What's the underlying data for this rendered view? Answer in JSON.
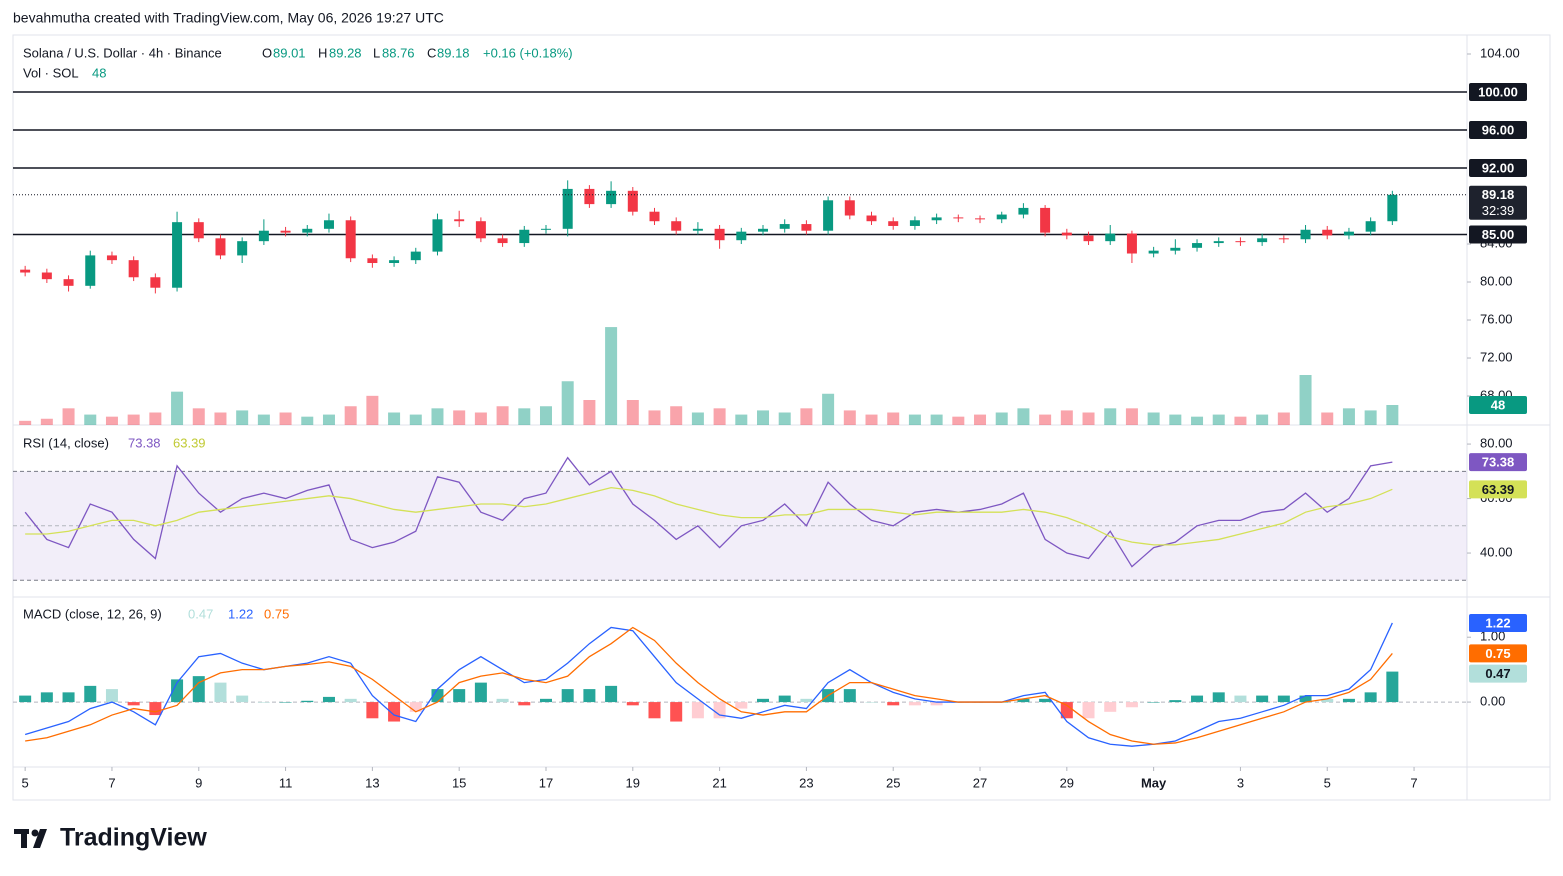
{
  "header": {
    "credit": "bevahmutha created with TradingView.com, May 06, 2026 19:27 UTC",
    "logo": "TradingView"
  },
  "chart_data": [
    {
      "type": "candlestick",
      "title": "Solana / U.S. Dollar · 4h · Binance",
      "legend": {
        "open_label": "O",
        "open": 89.01,
        "high_label": "H",
        "high": 89.28,
        "low_label": "L",
        "low": 88.76,
        "close_label": "C",
        "change": "+0.16 (+0.18%)"
      },
      "x": [
        0,
        0.5,
        1,
        1.5,
        2,
        2.5,
        3,
        3.5,
        4,
        4.5,
        5,
        5.5,
        6,
        6.5,
        7,
        7.5,
        8,
        8.5,
        9,
        9.5,
        10,
        10.5,
        11,
        11.5,
        12,
        12.5,
        13,
        13.5,
        14,
        14.5,
        15,
        15.5,
        16,
        16.5,
        17,
        17.5,
        18,
        18.5,
        19,
        19.5,
        20,
        20.5,
        21,
        21.5,
        22,
        22.5,
        23,
        23.5,
        24,
        24.5,
        25,
        25.5,
        26,
        26.5,
        27,
        27.5,
        28,
        28.5,
        29,
        29.5,
        30,
        30.5,
        31,
        31.5
      ],
      "open": [
        81.3,
        81.0,
        80.3,
        79.6,
        82.8,
        82.3,
        80.5,
        79.4,
        86.3,
        84.6,
        82.8,
        84.3,
        85.4,
        85.2,
        85.6,
        86.5,
        82.5,
        82.0,
        82.3,
        83.2,
        86.6,
        86.4,
        84.6,
        84.1,
        85.5,
        85.6,
        89.8,
        88.2,
        89.6,
        87.4,
        86.4,
        85.4,
        85.6,
        84.4,
        85.3,
        85.6,
        86.1,
        85.4,
        88.6,
        87.0,
        86.4,
        85.9,
        86.5,
        86.8,
        86.7,
        86.6,
        87.1,
        87.8,
        85.2,
        84.9,
        84.3,
        85.1,
        83.0,
        83.3,
        83.6,
        84.1,
        84.3,
        84.2,
        84.6,
        84.5,
        85.5,
        84.9,
        85.3,
        86.4
      ],
      "high": [
        81.7,
        81.4,
        80.7,
        83.3,
        83.2,
        82.7,
        80.9,
        87.4,
        86.7,
        85.0,
        84.7,
        86.6,
        85.8,
        86.0,
        87.2,
        86.9,
        82.9,
        82.7,
        83.6,
        87.2,
        87.5,
        86.8,
        85.0,
        85.9,
        86.0,
        90.7,
        90.2,
        90.6,
        90.0,
        87.8,
        86.8,
        86.3,
        86.0,
        85.7,
        86.0,
        86.6,
        86.5,
        89.0,
        89.0,
        87.4,
        86.8,
        86.9,
        87.2,
        87.1,
        87.0,
        87.4,
        88.3,
        88.1,
        85.6,
        85.3,
        86.0,
        85.4,
        83.7,
        84.5,
        84.5,
        84.7,
        84.7,
        85.1,
        84.9,
        86.0,
        85.9,
        85.7,
        86.8,
        89.6
      ],
      "low": [
        80.6,
        79.9,
        79.0,
        79.3,
        81.9,
        80.1,
        78.8,
        79.0,
        84.2,
        82.4,
        82.0,
        83.9,
        84.8,
        84.8,
        85.2,
        82.1,
        81.5,
        81.6,
        81.9,
        82.8,
        85.8,
        84.2,
        83.7,
        83.7,
        85.1,
        84.8,
        87.8,
        87.8,
        87.0,
        86.0,
        85.0,
        85.0,
        83.5,
        84.0,
        84.9,
        85.2,
        85.0,
        85.0,
        86.6,
        86.0,
        85.5,
        85.5,
        86.1,
        86.3,
        86.2,
        86.2,
        86.7,
        84.8,
        84.5,
        83.9,
        83.9,
        82.0,
        82.6,
        82.9,
        83.2,
        83.7,
        83.8,
        83.8,
        84.1,
        84.1,
        84.5,
        84.5,
        84.9,
        86.0
      ],
      "close": [
        81.0,
        80.3,
        79.6,
        82.8,
        82.3,
        80.5,
        79.4,
        86.3,
        84.6,
        82.8,
        84.3,
        85.4,
        85.2,
        85.6,
        86.5,
        82.5,
        82.0,
        82.3,
        83.2,
        86.6,
        86.4,
        84.6,
        84.1,
        85.5,
        85.6,
        89.8,
        88.2,
        89.6,
        87.4,
        86.4,
        85.4,
        85.6,
        84.4,
        85.3,
        85.6,
        86.1,
        85.4,
        88.6,
        87.0,
        86.4,
        85.9,
        86.5,
        86.8,
        86.7,
        86.6,
        87.1,
        87.8,
        85.2,
        84.9,
        84.3,
        85.1,
        83.0,
        83.3,
        83.6,
        84.1,
        84.3,
        84.2,
        84.6,
        84.5,
        85.5,
        84.9,
        85.3,
        86.4,
        89.18
      ],
      "up_color": "#089981",
      "down_color": "#f23645",
      "ylim": [
        64.95,
        106
      ],
      "yticks": [
        {
          "value": 68,
          "label": "68.00"
        },
        {
          "value": 72,
          "label": "72.00"
        },
        {
          "value": 76,
          "label": "76.00"
        },
        {
          "value": 80,
          "label": "80.00"
        },
        {
          "value": 84,
          "label": "84.00"
        },
        {
          "value": 104,
          "label": "104.00"
        }
      ],
      "hlines": [
        {
          "value": 100,
          "label": "100.00"
        },
        {
          "value": 96,
          "label": "96.00"
        },
        {
          "value": 92,
          "label": "92.00"
        },
        {
          "value": 85,
          "label": "85.00"
        }
      ],
      "countdown": "32:39",
      "xlim": [
        -0.28,
        33.22
      ],
      "xticks": [
        {
          "value": 0,
          "label": "5"
        },
        {
          "value": 2,
          "label": "7"
        },
        {
          "value": 4,
          "label": "9"
        },
        {
          "value": 6,
          "label": "11"
        },
        {
          "value": 8,
          "label": "13"
        },
        {
          "value": 10,
          "label": "15"
        },
        {
          "value": 12,
          "label": "17"
        },
        {
          "value": 14,
          "label": "19"
        },
        {
          "value": 16,
          "label": "21"
        },
        {
          "value": 18,
          "label": "23"
        },
        {
          "value": 20,
          "label": "25"
        },
        {
          "value": 22,
          "label": "27"
        },
        {
          "value": 24,
          "label": "29"
        },
        {
          "value": 26,
          "label": "May"
        },
        {
          "value": 28,
          "label": "3"
        },
        {
          "value": 30,
          "label": "5"
        },
        {
          "value": 32,
          "label": "7"
        }
      ],
      "volume": {
        "title": "Vol · SOL",
        "ylim": [
          0,
          240
        ],
        "values": [
          10,
          15,
          40,
          25,
          20,
          25,
          30,
          80,
          40,
          30,
          35,
          25,
          30,
          20,
          25,
          45,
          70,
          30,
          25,
          40,
          35,
          30,
          45,
          40,
          45,
          105,
          60,
          235,
          60,
          35,
          45,
          30,
          40,
          25,
          35,
          30,
          40,
          75,
          35,
          25,
          30,
          25,
          25,
          20,
          25,
          30,
          40,
          25,
          35,
          30,
          40,
          40,
          30,
          25,
          20,
          25,
          20,
          25,
          30,
          120,
          30,
          40,
          35,
          48
        ]
      }
    },
    {
      "type": "rsi",
      "title": "RSI (14, close)",
      "ylim": [
        24.6,
        87
      ],
      "band": [
        30,
        70
      ],
      "midline": 50,
      "yticks": [
        {
          "value": 40,
          "label": "40.00"
        },
        {
          "value": 60,
          "label": "60.00"
        },
        {
          "value": 80,
          "label": "80.00"
        }
      ],
      "series": [
        {
          "color": "#7e57c2",
          "values": [
            55,
            45,
            42,
            58,
            55,
            45,
            38,
            72,
            62,
            55,
            60,
            62,
            60,
            63,
            65,
            45,
            42,
            44,
            48,
            68,
            66,
            55,
            52,
            60,
            62,
            75,
            65,
            70,
            58,
            52,
            45,
            50,
            42,
            50,
            52,
            58,
            50,
            66,
            58,
            52,
            50,
            55,
            56,
            55,
            56,
            58,
            62,
            45,
            40,
            38,
            48,
            35,
            42,
            44,
            50,
            52,
            52,
            55,
            56,
            62,
            55,
            60,
            72,
            73.38
          ]
        },
        {
          "color": "#d4e157",
          "values": [
            47,
            47,
            48,
            50,
            52,
            52,
            50,
            52,
            55,
            56,
            57,
            58,
            59,
            60,
            61,
            60,
            58,
            56,
            55,
            56,
            57,
            58,
            58,
            57,
            58,
            60,
            62,
            64,
            63,
            61,
            58,
            56,
            54,
            53,
            53,
            54,
            54,
            56,
            56,
            56,
            55,
            54,
            55,
            55,
            55,
            55,
            56,
            55,
            53,
            50,
            46,
            44,
            43,
            43,
            44,
            45,
            47,
            49,
            51,
            55,
            57,
            58,
            60,
            63.39
          ]
        }
      ]
    },
    {
      "type": "macd",
      "title": "MACD (close, 12, 26, 9)",
      "ylim": [
        -0.97,
        1.62
      ],
      "yticks": [
        {
          "value": 0,
          "label": "0.00"
        },
        {
          "value": 1,
          "label": "1.00"
        }
      ],
      "histogram": {
        "color": "#b2dfdb",
        "colors": {
          "pos_rising": "#26a69a",
          "pos_falling": "#b2dfdb",
          "neg_falling": "#ff5252",
          "neg_rising": "#ffcdd2"
        },
        "values": [
          0.1,
          0.15,
          0.15,
          0.25,
          0.2,
          -0.05,
          -0.2,
          0.35,
          0.4,
          0.3,
          0.1,
          0,
          0,
          0.02,
          0.08,
          0.05,
          -0.25,
          -0.3,
          -0.15,
          0.2,
          0.2,
          0.3,
          0.05,
          -0.05,
          0.05,
          0.2,
          0.2,
          0.25,
          -0.05,
          -0.25,
          -0.3,
          -0.25,
          -0.25,
          -0.1,
          0.05,
          0.1,
          0.05,
          0.2,
          0.2,
          0,
          -0.05,
          -0.05,
          -0.05,
          0,
          0,
          0,
          0.05,
          0.05,
          -0.25,
          -0.25,
          -0.15,
          -0.08,
          0,
          0.03,
          0.1,
          0.15,
          0.1,
          0.1,
          0.1,
          0.1,
          0.05,
          0.05,
          0.15,
          0.47
        ]
      },
      "series": [
        {
          "color": "#2962ff",
          "values": [
            -0.5,
            -0.4,
            -0.3,
            -0.1,
            0.0,
            -0.15,
            -0.35,
            0.3,
            0.7,
            0.75,
            0.6,
            0.5,
            0.55,
            0.6,
            0.7,
            0.6,
            0.1,
            -0.2,
            -0.3,
            0.2,
            0.5,
            0.7,
            0.5,
            0.3,
            0.35,
            0.6,
            0.9,
            1.15,
            1.1,
            0.7,
            0.3,
            0.05,
            -0.2,
            -0.25,
            -0.15,
            -0.05,
            -0.1,
            0.3,
            0.5,
            0.3,
            0.15,
            0.05,
            0.0,
            0.0,
            0.0,
            0.0,
            0.1,
            0.15,
            -0.3,
            -0.55,
            -0.65,
            -0.68,
            -0.65,
            -0.6,
            -0.45,
            -0.3,
            -0.25,
            -0.15,
            -0.05,
            0.1,
            0.1,
            0.2,
            0.5,
            1.22
          ]
        },
        {
          "color": "#ff6d00",
          "values": [
            -0.6,
            -0.55,
            -0.45,
            -0.35,
            -0.2,
            -0.1,
            -0.15,
            -0.05,
            0.3,
            0.45,
            0.5,
            0.5,
            0.55,
            0.58,
            0.62,
            0.55,
            0.35,
            0.1,
            -0.15,
            0.0,
            0.3,
            0.4,
            0.45,
            0.35,
            0.3,
            0.4,
            0.7,
            0.9,
            1.15,
            0.95,
            0.6,
            0.3,
            0.05,
            -0.15,
            -0.2,
            -0.15,
            -0.15,
            0.1,
            0.3,
            0.3,
            0.2,
            0.1,
            0.05,
            0.0,
            0.0,
            0.0,
            0.05,
            0.1,
            -0.05,
            -0.3,
            -0.5,
            -0.6,
            -0.65,
            -0.63,
            -0.55,
            -0.45,
            -0.35,
            -0.25,
            -0.15,
            0.0,
            0.05,
            0.15,
            0.35,
            0.75
          ]
        }
      ]
    }
  ]
}
